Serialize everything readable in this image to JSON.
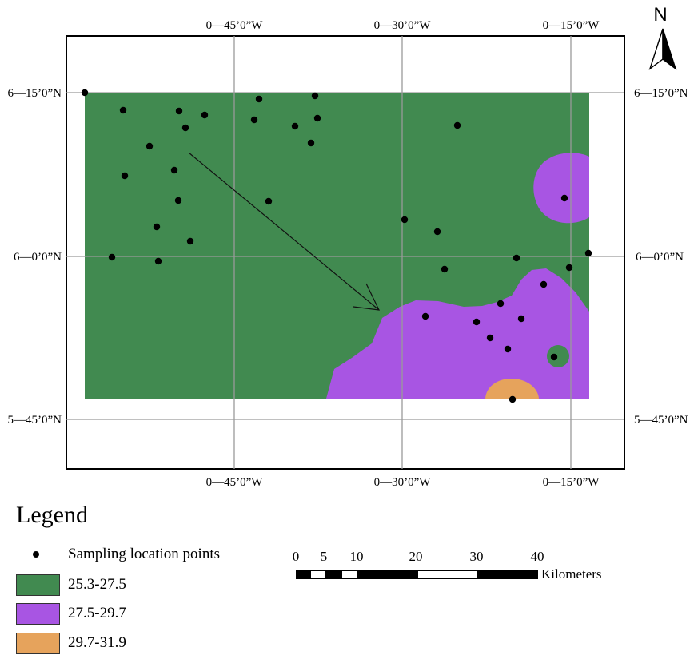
{
  "map": {
    "north_label": "N",
    "lon_labels_top": [
      "0―45’0”W",
      "0―30’0”W",
      "0―15’0”W"
    ],
    "lon_labels_bottom": [
      "0―45’0”W",
      "0―30’0”W",
      "0―15’0”W"
    ],
    "lat_labels_left": [
      "6―15’0”N",
      "6―0’0”N",
      "5―45’0”N"
    ],
    "lat_labels_right": [
      "6―15’0”N",
      "6―0’0”N",
      "5―45’0”N"
    ],
    "zone_colors": {
      "low": "#418a50",
      "mid": "#a855e3",
      "high": "#e6a35c"
    }
  },
  "legend": {
    "title": "Legend",
    "items": [
      {
        "label": "Sampling location points",
        "kind": "point",
        "color": "#000000"
      },
      {
        "label": "25.3-27.5",
        "kind": "fill",
        "color": "#418a50"
      },
      {
        "label": "27.5-29.7",
        "kind": "fill",
        "color": "#a855e3"
      },
      {
        "label": "29.7-31.9",
        "kind": "fill",
        "color": "#e6a35c"
      }
    ]
  },
  "scale_bar": {
    "ticks": [
      "0",
      "5",
      "10",
      "20",
      "30",
      "40"
    ],
    "unit": "Kilometers"
  }
}
